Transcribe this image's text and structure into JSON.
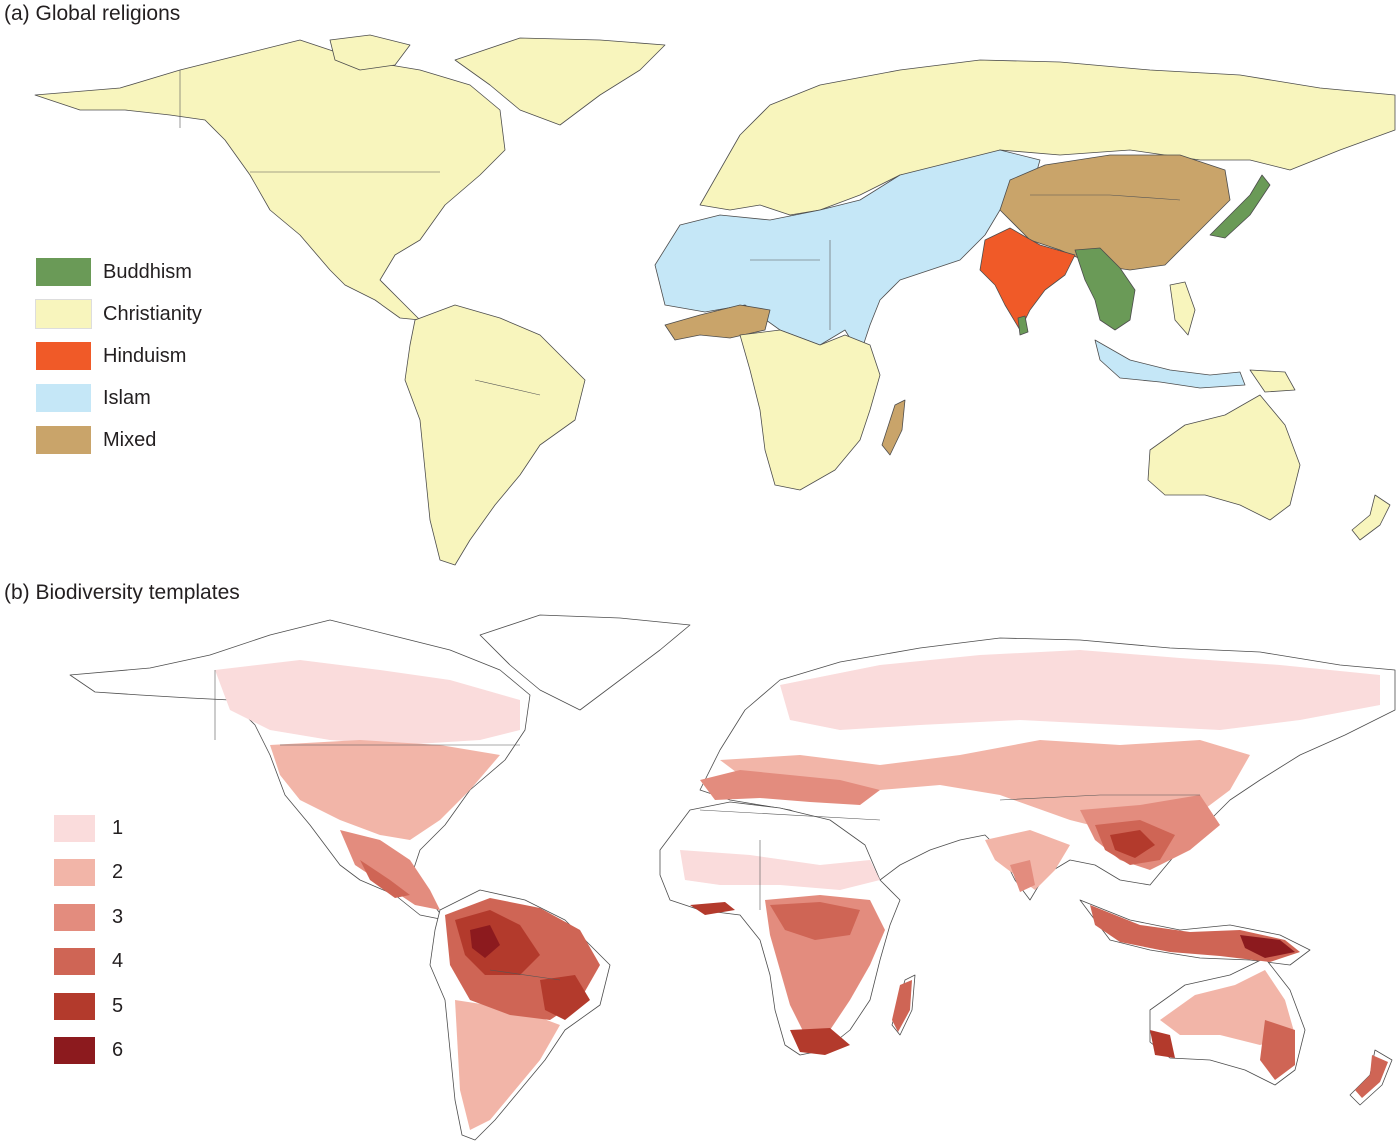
{
  "panel_a": {
    "title": "(a) Global religions",
    "legend": [
      {
        "label": "Buddhism",
        "color": "#6a9a57"
      },
      {
        "label": "Christianity",
        "color": "#f8f5bd"
      },
      {
        "label": "Hinduism",
        "color": "#f05a28"
      },
      {
        "label": "Islam",
        "color": "#c5e7f7"
      },
      {
        "label": "Mixed",
        "color": "#c9a46a"
      }
    ]
  },
  "panel_b": {
    "title": "(b) Biodiversity templates",
    "legend": [
      {
        "label": "1",
        "color": "#fadcdc"
      },
      {
        "label": "2",
        "color": "#f2b5a8"
      },
      {
        "label": "3",
        "color": "#e38c7e"
      },
      {
        "label": "4",
        "color": "#cf6555"
      },
      {
        "label": "5",
        "color": "#b33a2c"
      },
      {
        "label": "6",
        "color": "#8c1a1e"
      }
    ]
  },
  "colors": {
    "land_outline": "#4d4d4d",
    "background": "#ffffff",
    "no_data": "#ffffff"
  }
}
